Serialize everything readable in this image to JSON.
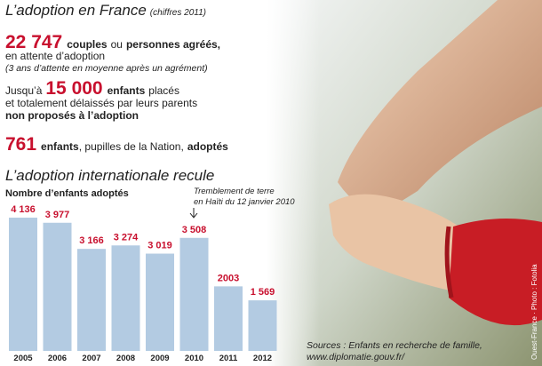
{
  "header": {
    "title": "L’adoption en France",
    "subtitle": "(chiffres 2011)"
  },
  "stats": [
    {
      "number": "22 747",
      "parts": [
        "couples",
        "ou",
        "personnes agréés,",
        "en attente d’adoption",
        "(3 ans d’attente en moyenne après un agrément)"
      ]
    },
    {
      "number": "15 000",
      "parts": [
        "Jusqu’à",
        "enfants",
        "placés",
        "et totalement délaissés par leurs parents",
        "non proposés à l’adoption"
      ]
    },
    {
      "number": "761",
      "parts": [
        "enfants",
        ", pupilles de la Nation,",
        "adoptés"
      ]
    }
  ],
  "chart_data": {
    "type": "bar",
    "title": "L’adoption internationale recule",
    "ylabel": "Nombre d’enfants adoptés",
    "categories": [
      "2005",
      "2006",
      "2007",
      "2008",
      "2009",
      "2010",
      "2011",
      "2012"
    ],
    "values": [
      4136,
      3977,
      3166,
      3274,
      3019,
      3508,
      2003,
      1569
    ],
    "value_labels": [
      "4 136",
      "3 977",
      "3 166",
      "3 274",
      "3 019",
      "3 508",
      "2003",
      "1 569"
    ],
    "color": "#b3cbe2",
    "label_color": "#c8102e",
    "annotation": [
      "Tremblement de terre",
      "en Haïti du 12 janvier 2010"
    ]
  },
  "sources": [
    "Sources : Enfants en recherche de famille,",
    "www.diplomatie.gouv.fr/"
  ],
  "credit": "Ouest-France · Photo : Fotolia"
}
